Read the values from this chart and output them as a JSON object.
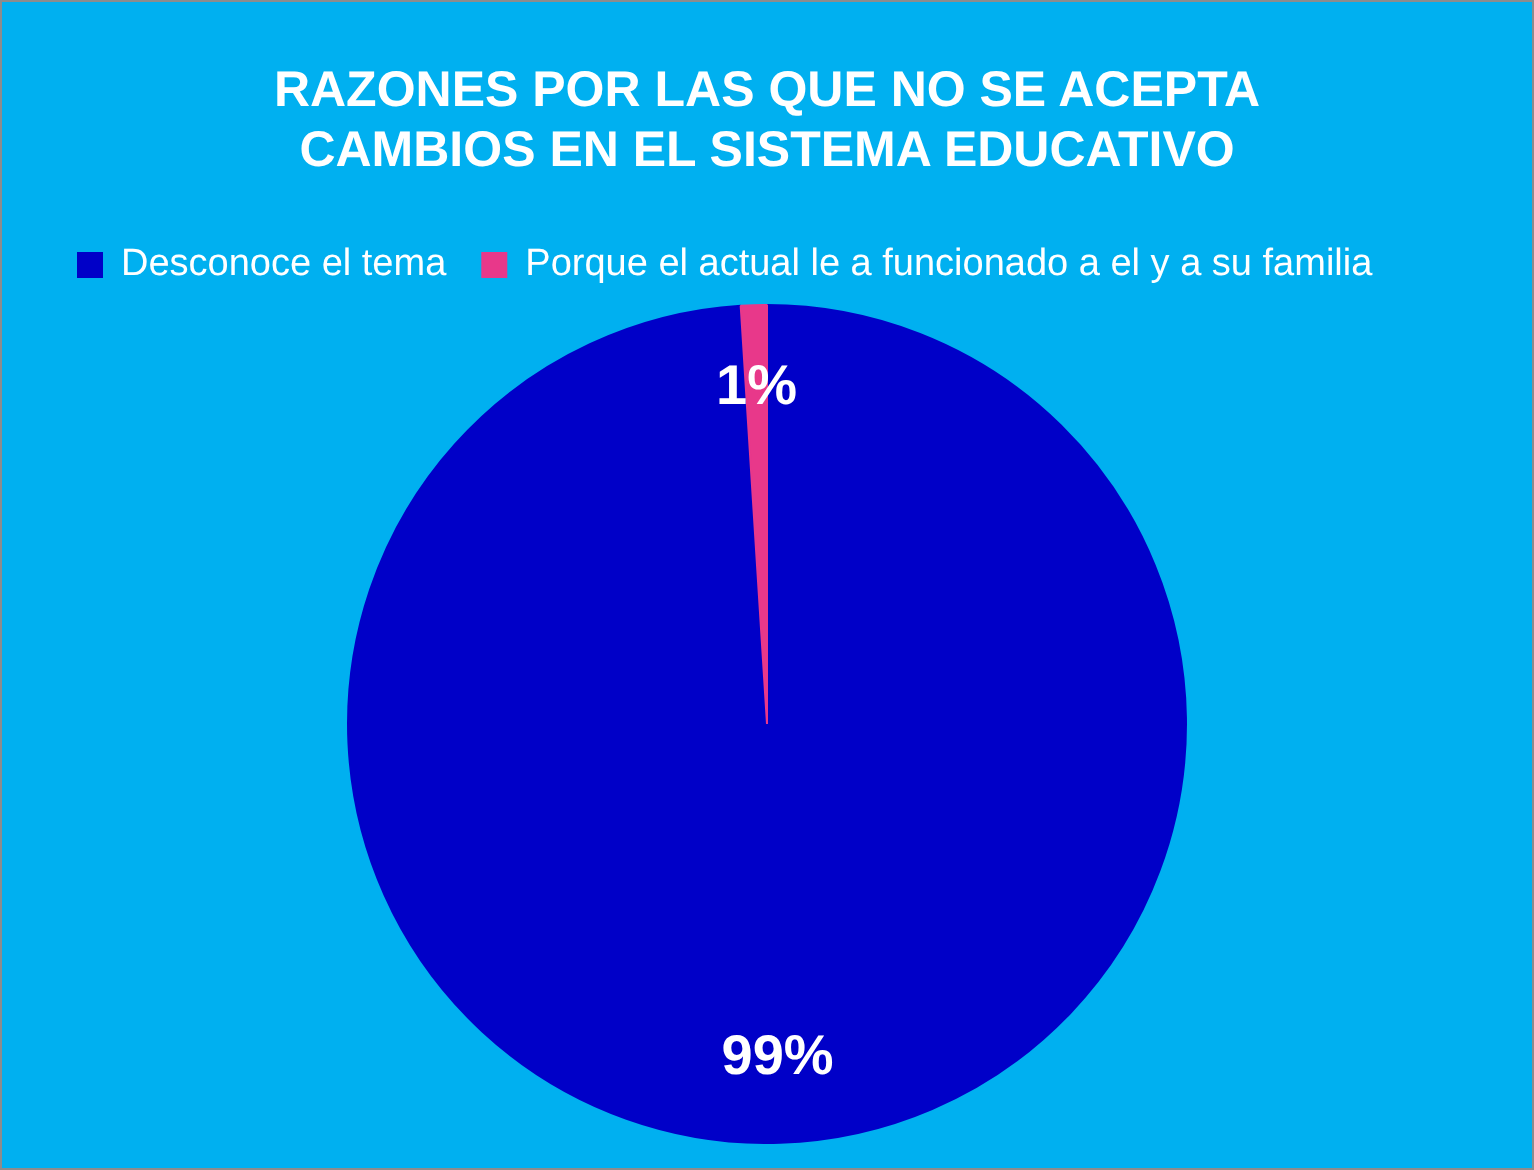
{
  "chart_data": {
    "type": "pie",
    "title": "RAZONES POR LAS QUE NO SE ACEPTA CAMBIOS EN EL SISTEMA EDUCATIVO",
    "categories": [
      "Desconoce el tema",
      "Porque el actual le a funcionado a el y a su familia"
    ],
    "values": [
      99,
      1
    ],
    "colors": [
      "#0000c8",
      "#e8388a"
    ],
    "value_labels": [
      "99%",
      "1%"
    ],
    "legend": "top left"
  }
}
